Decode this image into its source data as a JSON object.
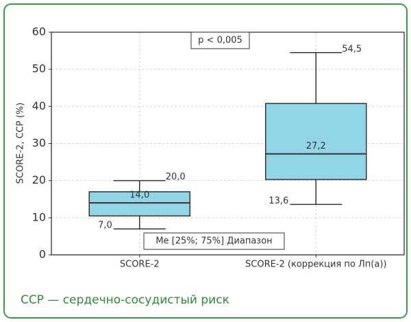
{
  "chart_data": {
    "type": "box",
    "ylabel": "SCORE-2, ССР (%)",
    "categories": [
      "SCORE-2",
      "SCORE-2 (коррекция по Лп(а))"
    ],
    "boxes": [
      {
        "whislo": 7.0,
        "q1": 10.5,
        "median": 14.0,
        "q3": 17.0,
        "whishi": 20.0,
        "value_labels": {
          "whishi": "20,0",
          "median": "14,0",
          "whislo": "7,0"
        }
      },
      {
        "whislo": 13.6,
        "q1": 20.3,
        "median": 27.2,
        "q3": 40.8,
        "whishi": 54.5,
        "value_labels": {
          "whishi": "54,5",
          "median": "27,2",
          "whislo": "13,6"
        }
      }
    ],
    "color": "#92d5e6",
    "ylim": [
      0,
      60
    ],
    "yticks": [
      0,
      10,
      20,
      30,
      40,
      50,
      60
    ],
    "grid": true,
    "annotations": [
      "p < 0,005",
      "Me [25%; 75%] Диапазон"
    ]
  },
  "footnote": "ССР — сердечно-сосудистый риск"
}
